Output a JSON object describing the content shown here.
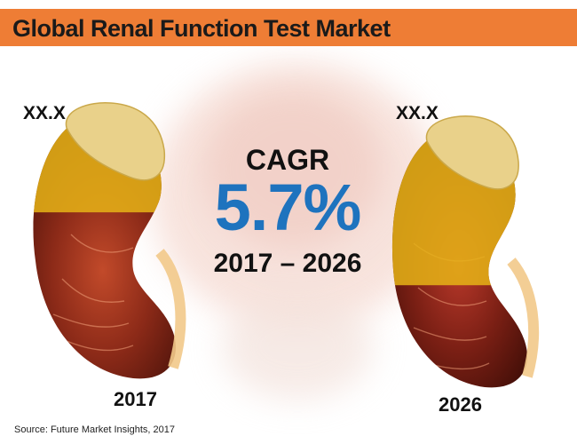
{
  "title": "Global Renal Function Test Market",
  "source": "Source: Future Market Insights, 2017",
  "colors": {
    "title_bar": "#ee7d35",
    "cagr_value": "#1e73be",
    "value_overlay": "#e6b416",
    "kidney_tissue": "#8c2a18"
  },
  "cagr": {
    "label": "CAGR",
    "value": "5.7%",
    "period": "2017 – 2026"
  },
  "chart_data": {
    "type": "bar",
    "categories": [
      "2017",
      "2026"
    ],
    "value_labels": [
      "XX.X",
      "XX.X"
    ],
    "values": [
      0.6,
      1.0
    ],
    "values_note": "relative heights of gold fill in each kidney pictogram",
    "title": "Global Renal Function Test Market",
    "xlabel": "",
    "ylabel": ""
  }
}
